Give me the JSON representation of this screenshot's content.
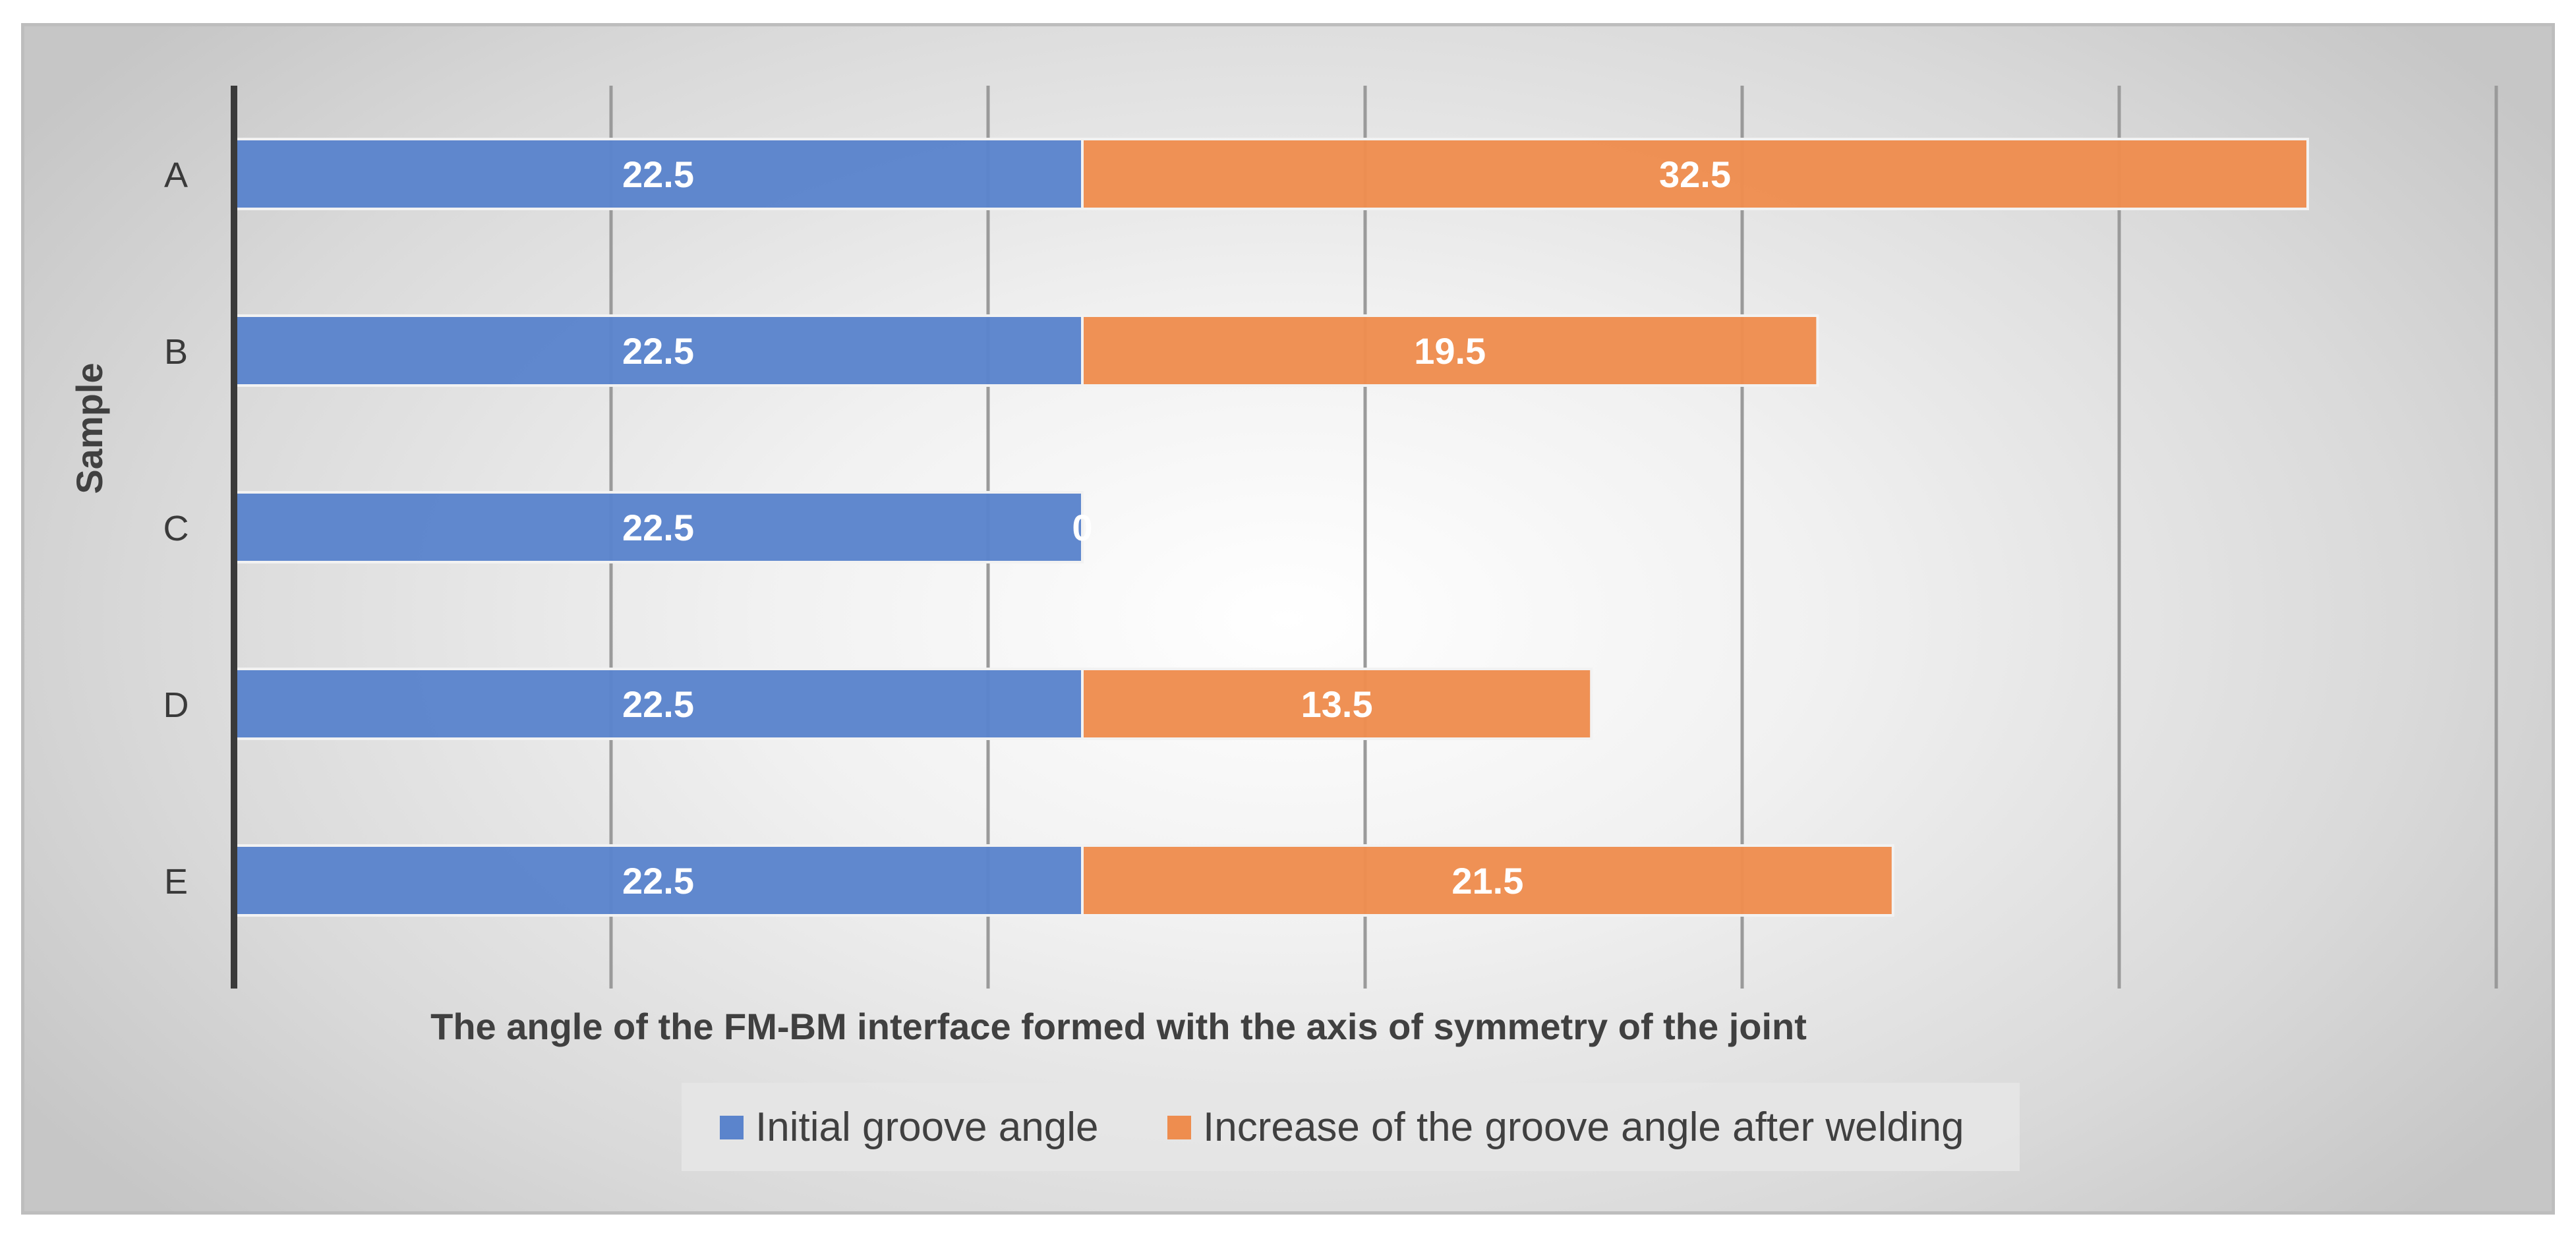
{
  "chart_data": {
    "type": "bar",
    "orientation": "horizontal",
    "stacked": true,
    "categories": [
      "A",
      "B",
      "C",
      "D",
      "E"
    ],
    "series": [
      {
        "name": "Initial groove angle",
        "color": "#5b84cc",
        "values": [
          22.5,
          22.5,
          22.5,
          22.5,
          22.5
        ]
      },
      {
        "name": "Increase of the groove angle after welding",
        "color": "#ee8d4f",
        "values": [
          32.5,
          19.5,
          0,
          13.5,
          21.5
        ]
      }
    ],
    "value_labels": [
      [
        "22.5",
        "22.5",
        "22.5",
        "22.5",
        "22.5"
      ],
      [
        "32.5",
        "19.5",
        "0",
        "13.5",
        "21.5"
      ]
    ],
    "title": "",
    "xlabel": "The angle of the FM-BM interface formed with the axis of symmetry of the joint",
    "ylabel": "Sample",
    "xlim": [
      0,
      60
    ],
    "x_gridlines": [
      10,
      20,
      30,
      40,
      50,
      60
    ],
    "x_tick_labels_shown": false,
    "grid": true,
    "legend_position": "bottom"
  }
}
